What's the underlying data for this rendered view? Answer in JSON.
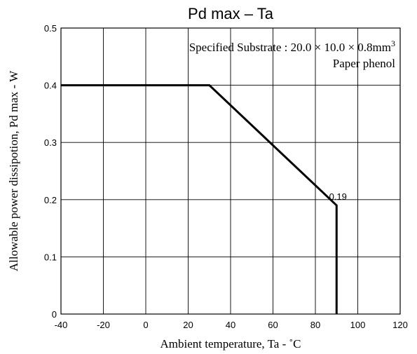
{
  "chart_data": {
    "type": "line",
    "title": "Pd max – Ta",
    "xlabel": "Ambient temperature,  Ta - ˚C",
    "ylabel": "Allowable power dissipotion,  Pd max - W",
    "xlim": [
      -40,
      120
    ],
    "ylim": [
      0,
      0.5
    ],
    "x_ticks": [
      -40,
      -20,
      0,
      20,
      40,
      60,
      80,
      100,
      120
    ],
    "x_tick_labels": [
      "-40",
      "-20",
      "0",
      "20",
      "40",
      "60",
      "80",
      "100",
      "120"
    ],
    "y_ticks": [
      0,
      0.1,
      0.2,
      0.3,
      0.4,
      0.5
    ],
    "y_tick_labels": [
      "0",
      "0.1",
      "0.2",
      "0.3",
      "0.4",
      "0.5"
    ],
    "grid": true,
    "series": [
      {
        "x": [
          -40,
          30,
          90,
          90
        ],
        "y": [
          0.4,
          0.4,
          0.19,
          0
        ]
      }
    ],
    "annotations": {
      "substrate_prefix": "Specified Substrate : 20.0 × 10.0 × 0.8mm",
      "substrate_sup": "3",
      "material": "Paper phenol"
    },
    "data_labels": [
      {
        "x": 90,
        "y": 0.19,
        "text": "0.19"
      }
    ]
  }
}
